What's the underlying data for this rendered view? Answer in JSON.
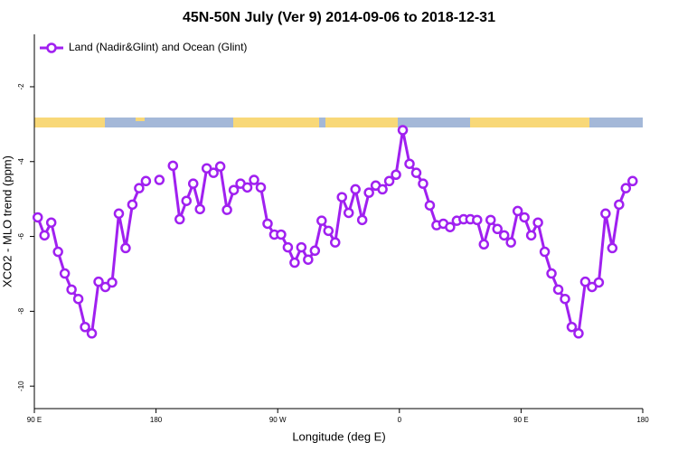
{
  "chart_data": {
    "type": "line",
    "title": "45N-50N July (Ver 9)   2014-09-06 to 2018-12-31",
    "xlabel": "Longitude (deg E)",
    "ylabel": "XCO2 - MLO trend (ppm)",
    "xlim": [
      90,
      540
    ],
    "xticks": [
      {
        "value": 90,
        "label": "90 E"
      },
      {
        "value": 180,
        "label": "180"
      },
      {
        "value": 270,
        "label": "90 W"
      },
      {
        "value": 360,
        "label": "0"
      },
      {
        "value": 450,
        "label": "90 E"
      },
      {
        "value": 540,
        "label": "180"
      }
    ],
    "ylim": [
      -10.6,
      -0.6
    ],
    "yticks": [
      -2,
      -4,
      -6,
      -8,
      -10
    ],
    "legend": "upper left",
    "x": [
      92.5,
      97.5,
      102.5,
      107.5,
      112.5,
      117.5,
      122.5,
      127.5,
      132.5,
      137.5,
      142.5,
      147.5,
      152.5,
      157.5,
      162.5,
      167.5,
      172.5,
      177.5,
      182.5,
      187.5,
      192.5,
      197.5,
      202.5,
      207.5,
      212.5,
      217.5,
      222.5,
      227.5,
      232.5,
      237.5,
      242.5,
      247.5,
      252.5,
      257.5,
      262.5,
      267.5,
      272.5,
      277.5,
      282.5,
      287.5,
      292.5,
      297.5,
      302.5,
      307.5,
      312.5,
      317.5,
      322.5,
      327.5,
      332.5,
      337.5,
      342.5,
      347.5,
      352.5,
      357.5,
      362.5,
      367.5,
      372.5,
      377.5,
      382.5,
      387.5,
      392.5,
      397.5,
      402.5,
      407.5,
      412.5,
      417.5,
      422.5,
      427.5,
      432.5,
      437.5,
      442.5,
      447.5,
      452.5,
      457.5,
      462.5,
      467.5,
      472.5,
      477.5,
      482.5,
      487.5,
      492.5,
      497.5,
      502.5,
      507.5,
      512.5,
      517.5,
      522.5,
      527.5,
      532.5
    ],
    "series": [
      {
        "name": "Land (Nadir&Glint) and Ocean (Glint)",
        "color": "#a020f0",
        "values": [
          -5.49,
          -5.97,
          -5.63,
          -6.41,
          -6.99,
          -7.42,
          -7.67,
          -8.42,
          -8.59,
          -7.21,
          -7.35,
          -7.23,
          -5.39,
          -6.31,
          -5.15,
          -4.71,
          -4.52,
          null,
          -4.49,
          null,
          -4.11,
          -5.54,
          -5.05,
          -4.59,
          -5.27,
          -4.18,
          -4.3,
          -4.13,
          -5.29,
          -4.76,
          -4.59,
          -4.69,
          -4.49,
          -4.69,
          -5.66,
          -5.95,
          -5.95,
          -6.29,
          -6.7,
          -6.29,
          -6.62,
          -6.38,
          -5.58,
          -5.85,
          -6.16,
          -4.95,
          -5.37,
          -4.74,
          -5.56,
          -4.83,
          -4.64,
          -4.74,
          -4.52,
          -4.35,
          -3.16,
          -4.06,
          -4.3,
          -4.59,
          -5.17,
          -5.7,
          -5.66,
          -5.75,
          -5.58,
          -5.54,
          -5.54,
          -5.56,
          -6.21,
          -5.56,
          -5.8,
          -5.97,
          -6.16,
          -5.32,
          -5.49,
          -5.97,
          -5.63,
          -6.41,
          -6.99,
          -7.42,
          -7.67,
          -8.42,
          -8.59,
          -7.21,
          -7.35,
          -7.23,
          -5.39,
          -6.31,
          -5.15,
          -4.71,
          -4.52
        ]
      }
    ]
  }
}
